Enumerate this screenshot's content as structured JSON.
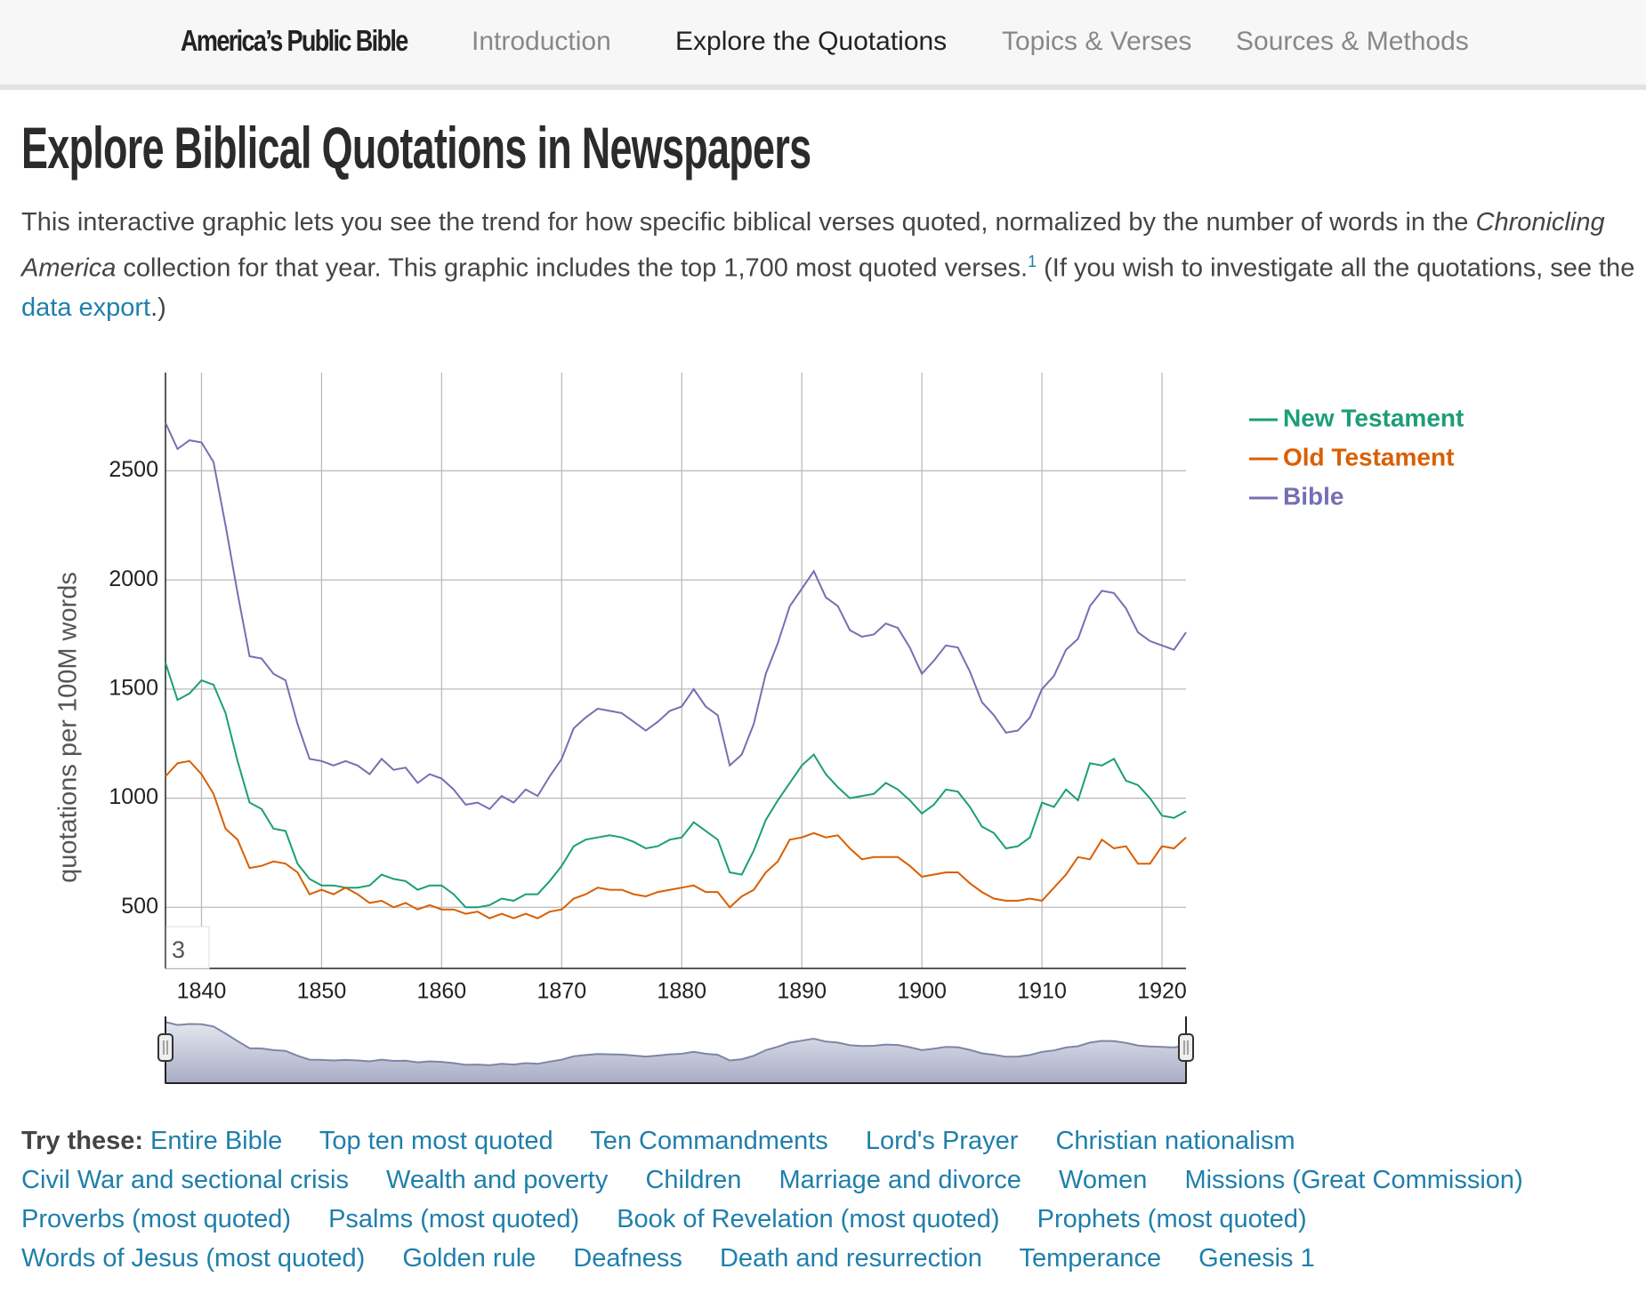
{
  "nav": {
    "brand": "America’s Public Bible",
    "links": [
      "Introduction",
      "Explore the Quotations",
      "Topics & Verses",
      "Sources & Methods"
    ],
    "active_index": 1
  },
  "heading": "Explore Biblical Quotations in Newspapers",
  "intro": {
    "text1": "This interactive graphic lets you see the trend for how specific biblical verses quoted, normalized by the number of words in the ",
    "italic": "Chronicling America",
    "text2": " collection for that year. This graphic includes the top 1,700 most quoted verses.",
    "footnote": "1",
    "text3": " (If you wish to investigate all the quotations, see the ",
    "link": "data export",
    "text4": ".)"
  },
  "chart_data": {
    "type": "line",
    "ylabel": "quotations per 100M words",
    "roll_period": "3",
    "x": [
      1837,
      1838,
      1839,
      1840,
      1841,
      1842,
      1843,
      1844,
      1845,
      1846,
      1847,
      1848,
      1849,
      1850,
      1851,
      1852,
      1853,
      1854,
      1855,
      1856,
      1857,
      1858,
      1859,
      1860,
      1861,
      1862,
      1863,
      1864,
      1865,
      1866,
      1867,
      1868,
      1869,
      1870,
      1871,
      1872,
      1873,
      1874,
      1875,
      1876,
      1877,
      1878,
      1879,
      1880,
      1881,
      1882,
      1883,
      1884,
      1885,
      1886,
      1887,
      1888,
      1889,
      1890,
      1891,
      1892,
      1893,
      1894,
      1895,
      1896,
      1897,
      1898,
      1899,
      1900,
      1901,
      1902,
      1903,
      1904,
      1905,
      1906,
      1907,
      1908,
      1909,
      1910,
      1911,
      1912,
      1913,
      1914,
      1915,
      1916,
      1917,
      1918,
      1919,
      1920,
      1921,
      1922
    ],
    "series": [
      {
        "name": "New Testament",
        "color": "#1b9e77",
        "values": [
          1620,
          1450,
          1480,
          1540,
          1520,
          1390,
          1170,
          980,
          950,
          860,
          850,
          700,
          630,
          600,
          600,
          590,
          590,
          600,
          650,
          630,
          620,
          580,
          600,
          600,
          560,
          500,
          500,
          510,
          540,
          530,
          560,
          560,
          620,
          690,
          780,
          810,
          820,
          830,
          820,
          800,
          770,
          780,
          810,
          820,
          890,
          850,
          810,
          660,
          650,
          760,
          900,
          990,
          1070,
          1150,
          1200,
          1110,
          1050,
          1000,
          1010,
          1020,
          1070,
          1040,
          990,
          930,
          970,
          1040,
          1030,
          960,
          870,
          840,
          770,
          780,
          820,
          980,
          960,
          1040,
          990,
          1160,
          1150,
          1180,
          1080,
          1060,
          1000,
          920,
          910,
          940
        ]
      },
      {
        "name": "Old Testament",
        "color": "#d95f02",
        "values": [
          1100,
          1160,
          1170,
          1110,
          1020,
          860,
          810,
          680,
          690,
          710,
          700,
          660,
          560,
          580,
          560,
          590,
          560,
          520,
          530,
          500,
          520,
          490,
          510,
          490,
          490,
          470,
          480,
          450,
          470,
          450,
          470,
          450,
          480,
          490,
          540,
          560,
          590,
          580,
          580,
          560,
          550,
          570,
          580,
          590,
          600,
          570,
          570,
          500,
          550,
          580,
          660,
          710,
          810,
          820,
          840,
          820,
          830,
          770,
          720,
          730,
          730,
          730,
          690,
          640,
          650,
          660,
          660,
          610,
          570,
          540,
          530,
          530,
          540,
          530,
          590,
          650,
          730,
          720,
          810,
          770,
          780,
          700,
          700,
          780,
          770,
          820
        ]
      },
      {
        "name": "Bible",
        "color": "#7570b3",
        "values": [
          2720,
          2600,
          2640,
          2630,
          2540,
          2250,
          1940,
          1650,
          1640,
          1570,
          1540,
          1340,
          1180,
          1170,
          1150,
          1170,
          1150,
          1110,
          1180,
          1130,
          1140,
          1070,
          1110,
          1090,
          1040,
          970,
          980,
          950,
          1010,
          980,
          1040,
          1010,
          1100,
          1180,
          1320,
          1370,
          1410,
          1400,
          1390,
          1350,
          1310,
          1350,
          1400,
          1420,
          1500,
          1420,
          1380,
          1150,
          1200,
          1340,
          1570,
          1710,
          1880,
          1960,
          2040,
          1920,
          1880,
          1770,
          1740,
          1750,
          1800,
          1780,
          1690,
          1570,
          1630,
          1700,
          1690,
          1580,
          1440,
          1380,
          1300,
          1310,
          1370,
          1500,
          1560,
          1680,
          1730,
          1880,
          1950,
          1940,
          1870,
          1760,
          1720,
          1700,
          1680,
          1760
        ]
      }
    ],
    "xlim": [
      1837,
      1922
    ],
    "xticks": [
      1840,
      1850,
      1860,
      1870,
      1880,
      1890,
      1900,
      1910,
      1920
    ],
    "ylim": [
      220,
      2950
    ],
    "yticks": [
      500,
      1000,
      1500,
      2000,
      2500
    ],
    "grid": true,
    "legend": "right",
    "overview_series": 2
  },
  "try_these": {
    "label": "Try these:",
    "links": [
      "Entire Bible",
      "Top ten most quoted",
      "Ten Commandments",
      "Lord's Prayer",
      "Christian nationalism",
      "Civil War and sectional crisis",
      "Wealth and poverty",
      "Children",
      "Marriage and divorce",
      "Women",
      "Missions (Great Commission)",
      "Proverbs (most quoted)",
      "Psalms (most quoted)",
      "Book of Revelation (most quoted)",
      "Prophets (most quoted)",
      "Words of Jesus (most quoted)",
      "Golden rule",
      "Deafness",
      "Death and resurrection",
      "Temperance",
      "Genesis 1"
    ]
  }
}
